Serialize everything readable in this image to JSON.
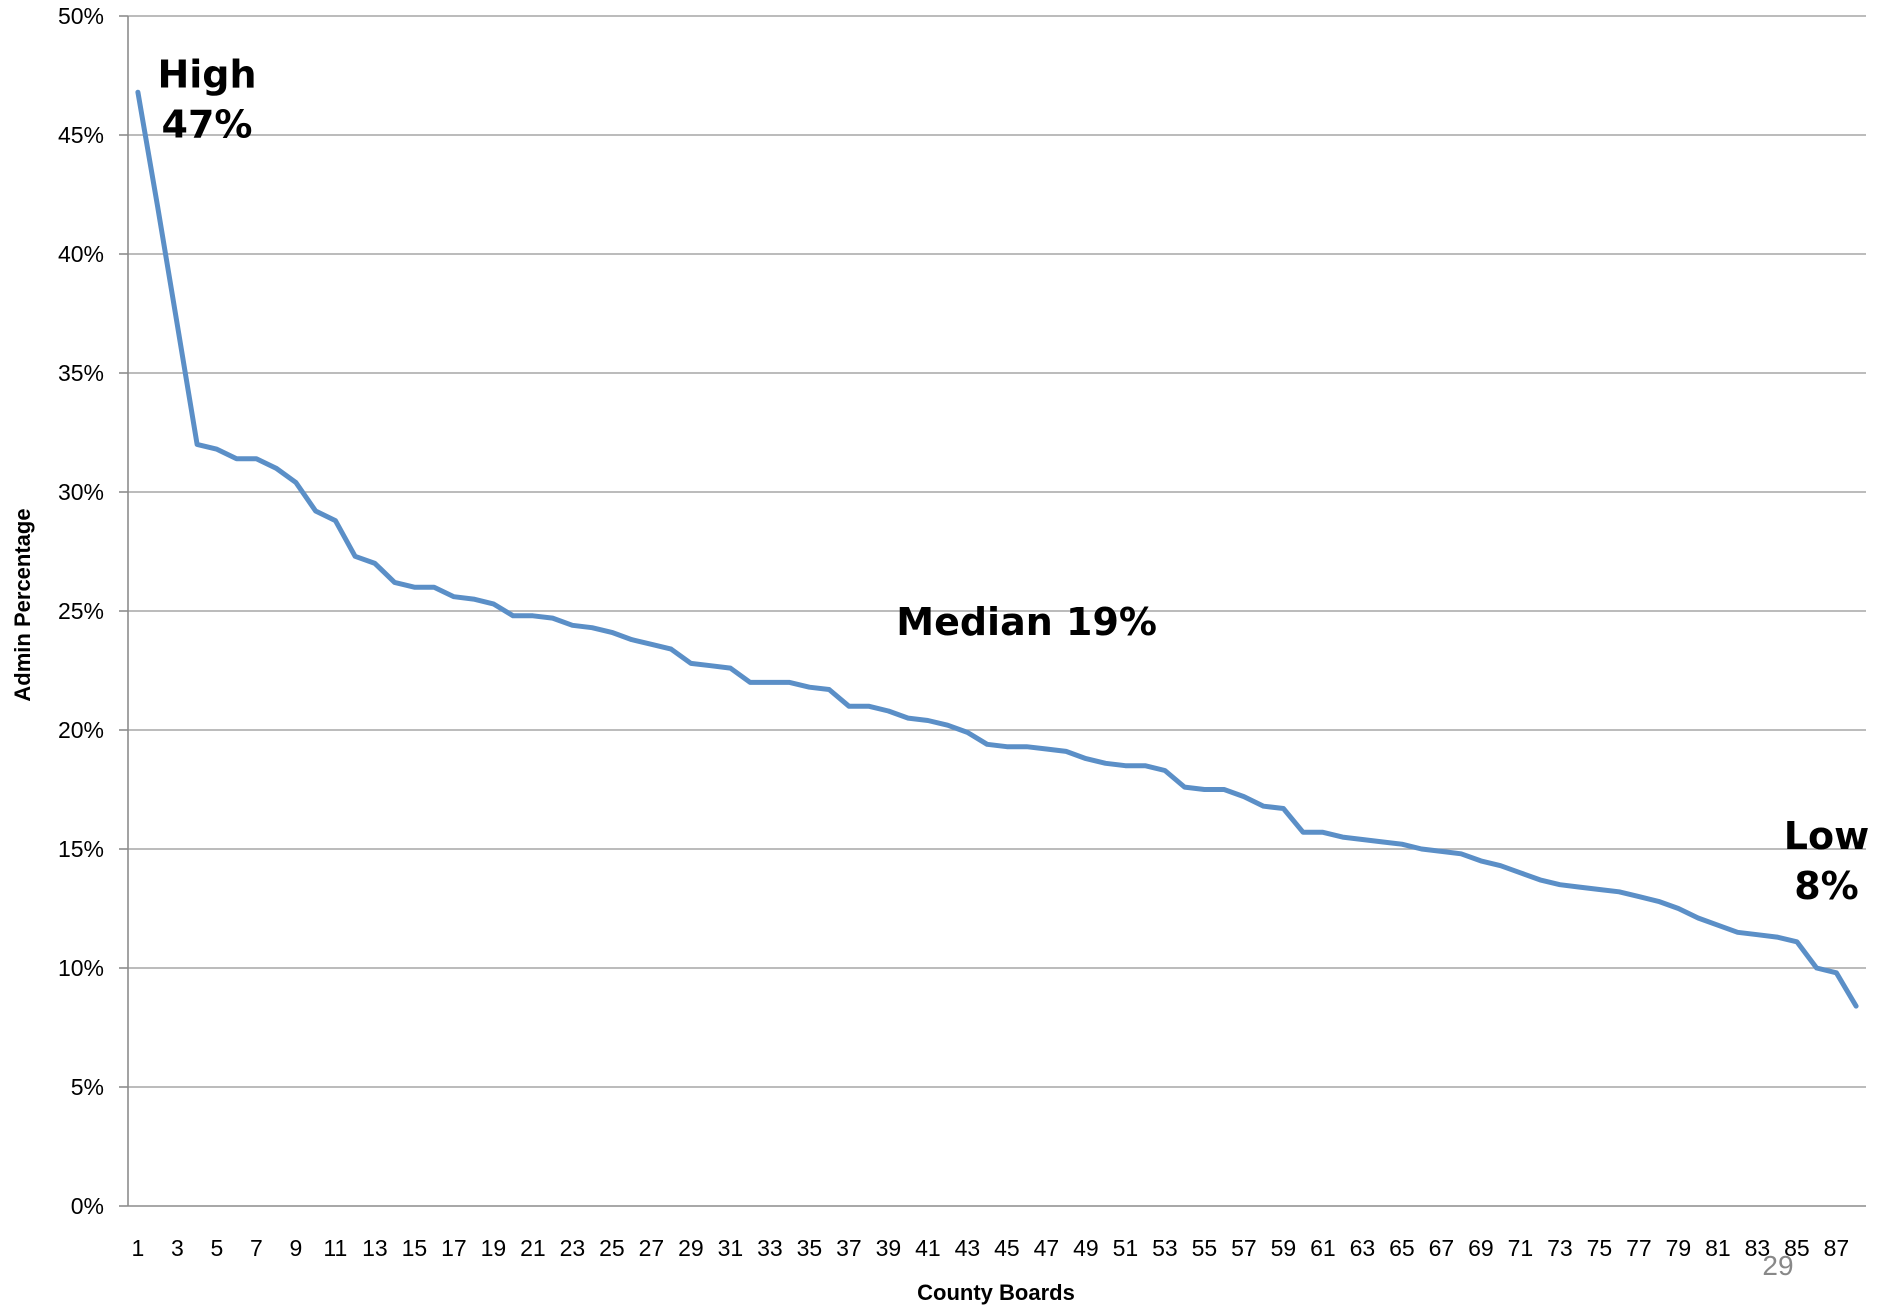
{
  "chart_data": {
    "type": "line",
    "xlabel": "County Boards",
    "ylabel": "Admin Percentage",
    "ylim": [
      0,
      0.5
    ],
    "y_ticks": [
      0,
      0.05,
      0.1,
      0.15,
      0.2,
      0.25,
      0.3,
      0.35,
      0.4,
      0.45,
      0.5
    ],
    "y_tick_labels": [
      "0%",
      "5%",
      "10%",
      "15%",
      "20%",
      "25%",
      "30%",
      "35%",
      "40%",
      "45%",
      "50%"
    ],
    "x_tick_labels": [
      "1",
      "3",
      "5",
      "7",
      "9",
      "11",
      "13",
      "15",
      "17",
      "19",
      "21",
      "23",
      "25",
      "27",
      "29",
      "31",
      "33",
      "35",
      "37",
      "39",
      "41",
      "43",
      "45",
      "47",
      "49",
      "51",
      "53",
      "55",
      "57",
      "59",
      "61",
      "63",
      "65",
      "67",
      "69",
      "71",
      "73",
      "75",
      "77",
      "79",
      "81",
      "83",
      "85",
      "87"
    ],
    "grid": true,
    "legend": "none",
    "series": [
      {
        "color": "#5B8FC7",
        "x": [
          1,
          2,
          3,
          4,
          5,
          6,
          7,
          8,
          9,
          10,
          11,
          12,
          13,
          14,
          15,
          16,
          17,
          18,
          19,
          20,
          21,
          22,
          23,
          24,
          25,
          26,
          27,
          28,
          29,
          30,
          31,
          32,
          33,
          34,
          35,
          36,
          37,
          38,
          39,
          40,
          41,
          42,
          43,
          44,
          45,
          46,
          47,
          48,
          49,
          50,
          51,
          52,
          53,
          54,
          55,
          56,
          57,
          58,
          59,
          60,
          61,
          62,
          63,
          64,
          65,
          66,
          67,
          68,
          69,
          70,
          71,
          72,
          73,
          74,
          75,
          76,
          77,
          78,
          79,
          80,
          81,
          82,
          83,
          84,
          85,
          86,
          87,
          88
        ],
        "values": [
          0.468,
          0.42,
          0.37,
          0.32,
          0.318,
          0.314,
          0.314,
          0.31,
          0.304,
          0.292,
          0.288,
          0.273,
          0.27,
          0.262,
          0.26,
          0.26,
          0.256,
          0.255,
          0.253,
          0.248,
          0.248,
          0.247,
          0.244,
          0.243,
          0.241,
          0.238,
          0.236,
          0.234,
          0.228,
          0.227,
          0.226,
          0.22,
          0.22,
          0.22,
          0.218,
          0.217,
          0.21,
          0.21,
          0.208,
          0.205,
          0.204,
          0.202,
          0.199,
          0.194,
          0.193,
          0.193,
          0.192,
          0.191,
          0.188,
          0.186,
          0.185,
          0.185,
          0.183,
          0.176,
          0.175,
          0.175,
          0.172,
          0.168,
          0.167,
          0.157,
          0.157,
          0.155,
          0.154,
          0.153,
          0.152,
          0.15,
          0.149,
          0.148,
          0.145,
          0.143,
          0.14,
          0.137,
          0.135,
          0.134,
          0.133,
          0.132,
          0.13,
          0.128,
          0.125,
          0.121,
          0.118,
          0.115,
          0.114,
          0.113,
          0.111,
          0.1,
          0.098,
          0.084
        ]
      }
    ],
    "annotations": [
      {
        "name": "high",
        "lines": [
          "High",
          "47%"
        ],
        "x": 4.5,
        "y": 0.47
      },
      {
        "name": "median",
        "lines": [
          "Median 19%"
        ],
        "x": 46,
        "y": 0.24
      },
      {
        "name": "low",
        "lines": [
          "Low",
          "8%"
        ],
        "x": 86.5,
        "y": 0.15
      }
    ]
  },
  "page_number": "29"
}
